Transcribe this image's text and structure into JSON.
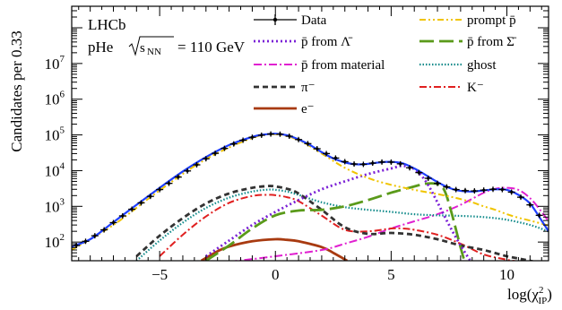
{
  "chart_data": {
    "type": "line",
    "experiment_label": "LHCb",
    "collision": "pHe",
    "energy_label": "110 GeV",
    "sqrt_label": "s",
    "sqrt_sub": "NN",
    "xlabel": "log(χ²IP)",
    "xlabel_main": "log(χ",
    "xlabel_sup": "2",
    "xlabel_sub": "IP",
    "xlabel_close": ")",
    "ylabel": "Candidates per 0.33",
    "xlim": [
      -8.8,
      11.8
    ],
    "ylog": true,
    "ylim": [
      30,
      400000000
    ],
    "xticks": [
      -5,
      0,
      5,
      10
    ],
    "xtick_labels": [
      "−5",
      "0",
      "5",
      "10"
    ],
    "yticks": [
      100,
      1000,
      10000,
      100000,
      1000000,
      10000000
    ],
    "ytick_labels": [
      {
        "base": "10",
        "exp": "2"
      },
      {
        "base": "10",
        "exp": "3"
      },
      {
        "base": "10",
        "exp": "4"
      },
      {
        "base": "10",
        "exp": "5"
      },
      {
        "base": "10",
        "exp": "6"
      },
      {
        "base": "10",
        "exp": "7"
      }
    ],
    "legend": [
      {
        "label": "Data",
        "key": "data"
      },
      {
        "label": "p̄ from Λ̄",
        "key": "lambda"
      },
      {
        "label": "p̄ from material",
        "key": "material"
      },
      {
        "label": "π⁻",
        "key": "pion"
      },
      {
        "label": "e⁻",
        "key": "electron"
      },
      {
        "label": "prompt p̄",
        "key": "prompt"
      },
      {
        "label": "p̄ from Σ̄",
        "key": "sigma"
      },
      {
        "label": "ghost",
        "key": "ghost"
      },
      {
        "label": "K⁻",
        "key": "kaon"
      }
    ],
    "series": [
      {
        "key": "total",
        "color": "#1f3fff",
        "x": [
          -8.8,
          -8,
          -7,
          -6,
          -5,
          -4,
          -3,
          -2,
          -1,
          -0.5,
          0,
          0.5,
          1,
          1.5,
          2,
          2.5,
          3,
          3.5,
          4,
          4.5,
          5,
          5.5,
          6,
          6.5,
          7,
          7.5,
          8,
          8.5,
          9,
          9.5,
          10,
          10.5,
          11,
          11.5,
          11.8
        ],
        "y": [
          75,
          120,
          360,
          1100,
          3300,
          9500,
          24000,
          52000,
          88000,
          102000,
          108000,
          98000,
          75000,
          52000,
          33000,
          22000,
          17000,
          15000,
          15500,
          17000,
          17600,
          16000,
          11500,
          7500,
          4800,
          3300,
          2700,
          2600,
          2800,
          3000,
          2900,
          2100,
          1200,
          400,
          200
        ]
      },
      {
        "key": "data",
        "color": "#000000",
        "x": [
          -8.6,
          -8.2,
          -7.8,
          -7.4,
          -7,
          -6.6,
          -6.2,
          -5.8,
          -5.4,
          -5,
          -4.6,
          -4.2,
          -3.8,
          -3.4,
          -3,
          -2.6,
          -2.2,
          -1.8,
          -1.4,
          -1,
          -0.6,
          -0.2,
          0.2,
          0.6,
          1,
          1.4,
          1.8,
          2.2,
          2.6,
          3,
          3.4,
          3.8,
          4.2,
          4.6,
          5,
          5.4,
          5.8,
          6.2,
          6.6,
          7,
          7.4,
          7.8,
          8.2,
          8.6,
          9,
          9.4,
          9.8,
          10.2,
          10.6,
          11,
          11.4
        ],
        "y": [
          80,
          105,
          150,
          220,
          350,
          540,
          830,
          1250,
          1900,
          2950,
          4400,
          6600,
          9800,
          14500,
          21500,
          30500,
          42000,
          56000,
          71000,
          86000,
          98000,
          106000,
          105000,
          92000,
          74000,
          57000,
          41000,
          30000,
          22500,
          17800,
          15300,
          15000,
          16200,
          17400,
          17300,
          15500,
          12000,
          8800,
          6100,
          4400,
          3500,
          2950,
          2750,
          2700,
          2850,
          3000,
          2950,
          2500,
          1800,
          1100,
          560
        ]
      },
      {
        "key": "prompt",
        "color": "#f0c400",
        "x": [
          -8.8,
          -7,
          -5,
          -3,
          -1,
          0,
          1,
          2,
          3,
          4,
          5,
          6,
          7,
          7.5,
          8,
          8.5,
          9,
          9.5,
          10,
          10.5,
          11,
          11.8
        ],
        "y": [
          60,
          300,
          2800,
          21000,
          82000,
          104000,
          72000,
          30000,
          12000,
          6200,
          4000,
          2900,
          2200,
          1900,
          1600,
          1300,
          1000,
          800,
          600,
          480,
          400,
          290
        ]
      },
      {
        "key": "lambda",
        "color": "#7a1fd6",
        "x": [
          -3,
          -2,
          -1,
          0,
          1,
          2,
          3,
          4,
          5,
          5.5,
          6,
          6.5,
          7,
          7.5,
          8,
          8.5
        ],
        "y": [
          40,
          110,
          300,
          700,
          1500,
          3000,
          5000,
          8000,
          11500,
          13500,
          11000,
          5000,
          1300,
          300,
          80,
          25
        ]
      },
      {
        "key": "sigma",
        "color": "#5a9a1a",
        "x": [
          -3,
          -2,
          -1,
          0,
          1,
          2,
          3,
          4,
          5,
          6,
          6.5,
          7,
          7.3,
          7.6,
          8,
          8.2
        ],
        "y": [
          30,
          80,
          240,
          560,
          760,
          800,
          1000,
          1500,
          2400,
          3600,
          4300,
          4200,
          2800,
          700,
          70,
          25
        ]
      },
      {
        "key": "material",
        "color": "#e020d0",
        "x": [
          -2,
          0,
          2,
          3,
          4,
          5,
          6,
          7,
          8,
          9,
          9.5,
          10,
          10.5,
          11,
          11.5,
          11.8
        ],
        "y": [
          28,
          40,
          60,
          90,
          140,
          240,
          380,
          600,
          1100,
          2400,
          3100,
          3300,
          2900,
          1700,
          700,
          380
        ]
      },
      {
        "key": "pion",
        "color": "#333333",
        "x": [
          -6,
          -5,
          -4,
          -3,
          -2,
          -1,
          -0.3,
          0,
          0.5,
          1,
          2,
          3,
          4,
          5,
          6,
          7,
          8,
          9,
          10,
          11,
          11.8
        ],
        "y": [
          40,
          150,
          470,
          1200,
          2300,
          3300,
          3700,
          3600,
          3100,
          2300,
          800,
          260,
          170,
          180,
          160,
          120,
          80,
          60,
          40,
          30,
          22
        ]
      },
      {
        "key": "ghost",
        "color": "#108a8a",
        "x": [
          -6,
          -5,
          -4,
          -3,
          -2,
          -1,
          -0.3,
          0,
          0.5,
          1,
          2,
          3,
          4,
          5,
          6,
          7,
          8,
          9,
          10,
          11,
          11.8
        ],
        "y": [
          30,
          110,
          350,
          900,
          1750,
          2600,
          2950,
          2900,
          2600,
          2100,
          1300,
          950,
          800,
          700,
          600,
          560,
          540,
          500,
          420,
          300,
          200
        ]
      },
      {
        "key": "kaon",
        "color": "#e02020",
        "x": [
          -5,
          -4,
          -3,
          -2,
          -1,
          -0.3,
          0,
          0.5,
          1,
          2,
          3,
          4,
          5,
          5.5,
          6,
          7,
          8,
          9,
          10,
          10.5,
          11
        ],
        "y": [
          40,
          160,
          520,
          1250,
          1950,
          2100,
          2050,
          1800,
          1400,
          550,
          220,
          200,
          240,
          240,
          220,
          160,
          90,
          45,
          32,
          28,
          22
        ]
      },
      {
        "key": "electron",
        "color": "#a83a10",
        "x": [
          -3.2,
          -2.5,
          -2,
          -1,
          0,
          0.5,
          1,
          2,
          2.5,
          3.1
        ],
        "y": [
          30,
          55,
          75,
          105,
          120,
          115,
          105,
          72,
          50,
          30
        ]
      }
    ]
  }
}
